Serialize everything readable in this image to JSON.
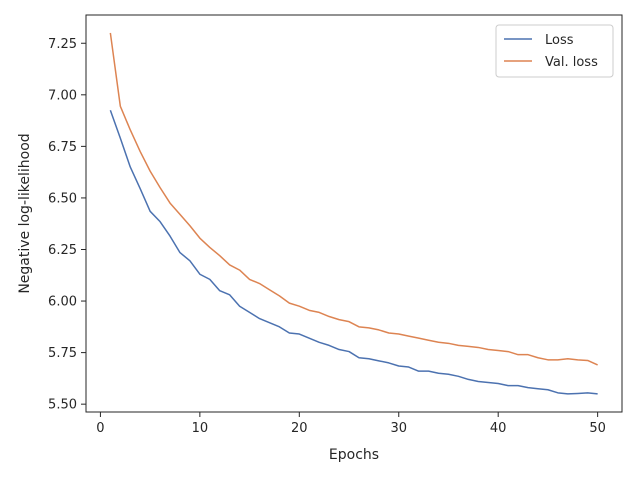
{
  "chart_data": {
    "type": "line",
    "title": "",
    "xlabel": "Epochs",
    "ylabel": "Negative log-likelihood",
    "xlim": [
      -1.45,
      52.45
    ],
    "ylim": [
      5.462,
      7.387
    ],
    "xticks": [
      0,
      10,
      20,
      30,
      40,
      50
    ],
    "xtick_labels": [
      "0",
      "10",
      "20",
      "30",
      "40",
      "50"
    ],
    "yticks": [
      5.5,
      5.75,
      6.0,
      6.25,
      6.5,
      6.75,
      7.0,
      7.25
    ],
    "ytick_labels": [
      "5.50",
      "5.75",
      "6.00",
      "6.25",
      "6.50",
      "6.75",
      "7.00",
      "7.25"
    ],
    "grid": false,
    "legend_position": "top-right",
    "x": [
      1,
      2,
      3,
      4,
      5,
      6,
      7,
      8,
      9,
      10,
      11,
      12,
      13,
      14,
      15,
      16,
      17,
      18,
      19,
      20,
      21,
      22,
      23,
      24,
      25,
      26,
      27,
      28,
      29,
      30,
      31,
      32,
      33,
      34,
      35,
      36,
      37,
      38,
      39,
      40,
      41,
      42,
      43,
      44,
      45,
      46,
      47,
      48,
      49,
      50
    ],
    "series": [
      {
        "name": "Loss",
        "color": "#4c72b0",
        "values": [
          6.925,
          6.79,
          6.65,
          6.545,
          6.435,
          6.385,
          6.315,
          6.235,
          6.195,
          6.13,
          6.105,
          6.05,
          6.03,
          5.975,
          5.945,
          5.915,
          5.895,
          5.875,
          5.845,
          5.84,
          5.82,
          5.8,
          5.785,
          5.765,
          5.755,
          5.725,
          5.72,
          5.71,
          5.7,
          5.685,
          5.68,
          5.66,
          5.66,
          5.65,
          5.645,
          5.635,
          5.62,
          5.61,
          5.605,
          5.6,
          5.59,
          5.59,
          5.58,
          5.575,
          5.57,
          5.555,
          5.55,
          5.552,
          5.555,
          5.55
        ]
      },
      {
        "name": "Val. loss",
        "color": "#dd8452",
        "values": [
          7.3,
          6.945,
          6.83,
          6.725,
          6.63,
          6.55,
          6.475,
          6.42,
          6.365,
          6.305,
          6.26,
          6.22,
          6.175,
          6.15,
          6.105,
          6.085,
          6.055,
          6.025,
          5.99,
          5.975,
          5.955,
          5.945,
          5.925,
          5.91,
          5.9,
          5.875,
          5.87,
          5.86,
          5.845,
          5.84,
          5.83,
          5.82,
          5.81,
          5.8,
          5.795,
          5.785,
          5.78,
          5.775,
          5.765,
          5.76,
          5.755,
          5.74,
          5.74,
          5.725,
          5.715,
          5.715,
          5.72,
          5.715,
          5.712,
          5.69
        ]
      }
    ]
  }
}
